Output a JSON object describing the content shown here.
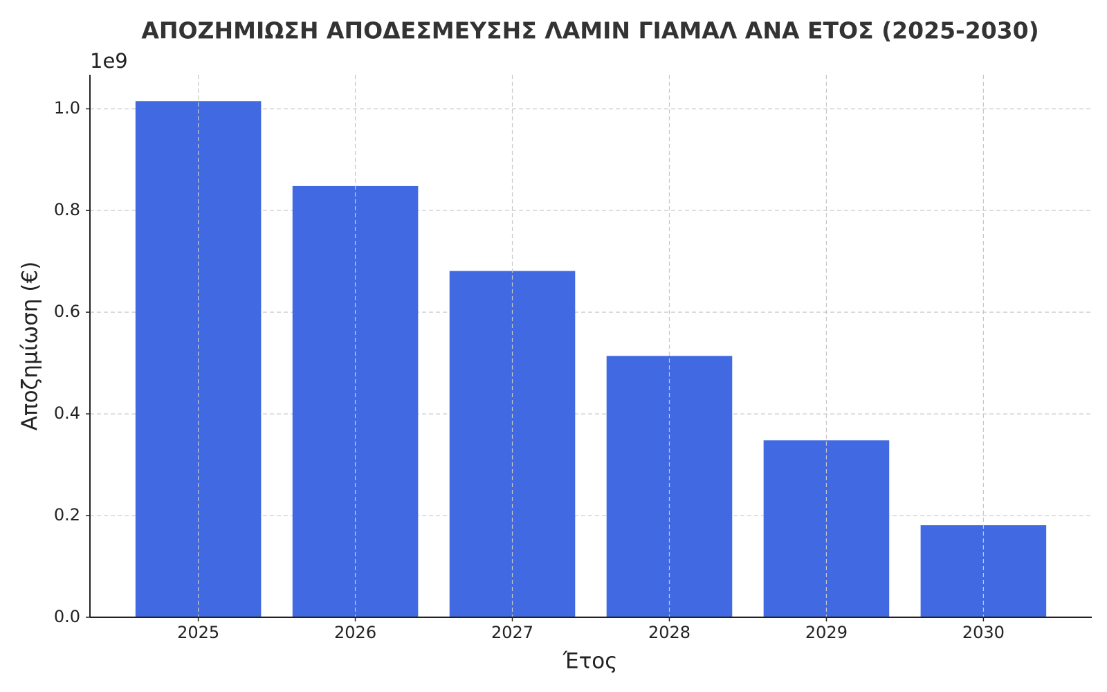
{
  "chart_data": {
    "type": "bar",
    "title": "ΑΠΟΖΗΜΙΩΣΗ ΑΠΟΔΕΣΜΕΥΣΗΣ ΛΑΜΙΝ ΓΙΑΜΑΛ ΑΝΑ ΕΤΟΣ (2025-2030)",
    "x_label": "Έτος",
    "y_label": "Αποζημίωση (€)",
    "y_offset_label": "1e9",
    "categories": [
      "2025",
      "2026",
      "2027",
      "2028",
      "2029",
      "2030"
    ],
    "values": [
      1015000000,
      848000000,
      681000000,
      514000000,
      348000000,
      181000000
    ],
    "color": "#4169e1",
    "ylim": [
      0,
      1067000000
    ],
    "yticks": [
      {
        "value": 0,
        "label": "0.0"
      },
      {
        "value": 200000000,
        "label": "0.2"
      },
      {
        "value": 400000000,
        "label": "0.4"
      },
      {
        "value": 600000000,
        "label": "0.6"
      },
      {
        "value": 800000000,
        "label": "0.8"
      },
      {
        "value": 1000000000,
        "label": "1.0"
      }
    ],
    "grid": true
  }
}
